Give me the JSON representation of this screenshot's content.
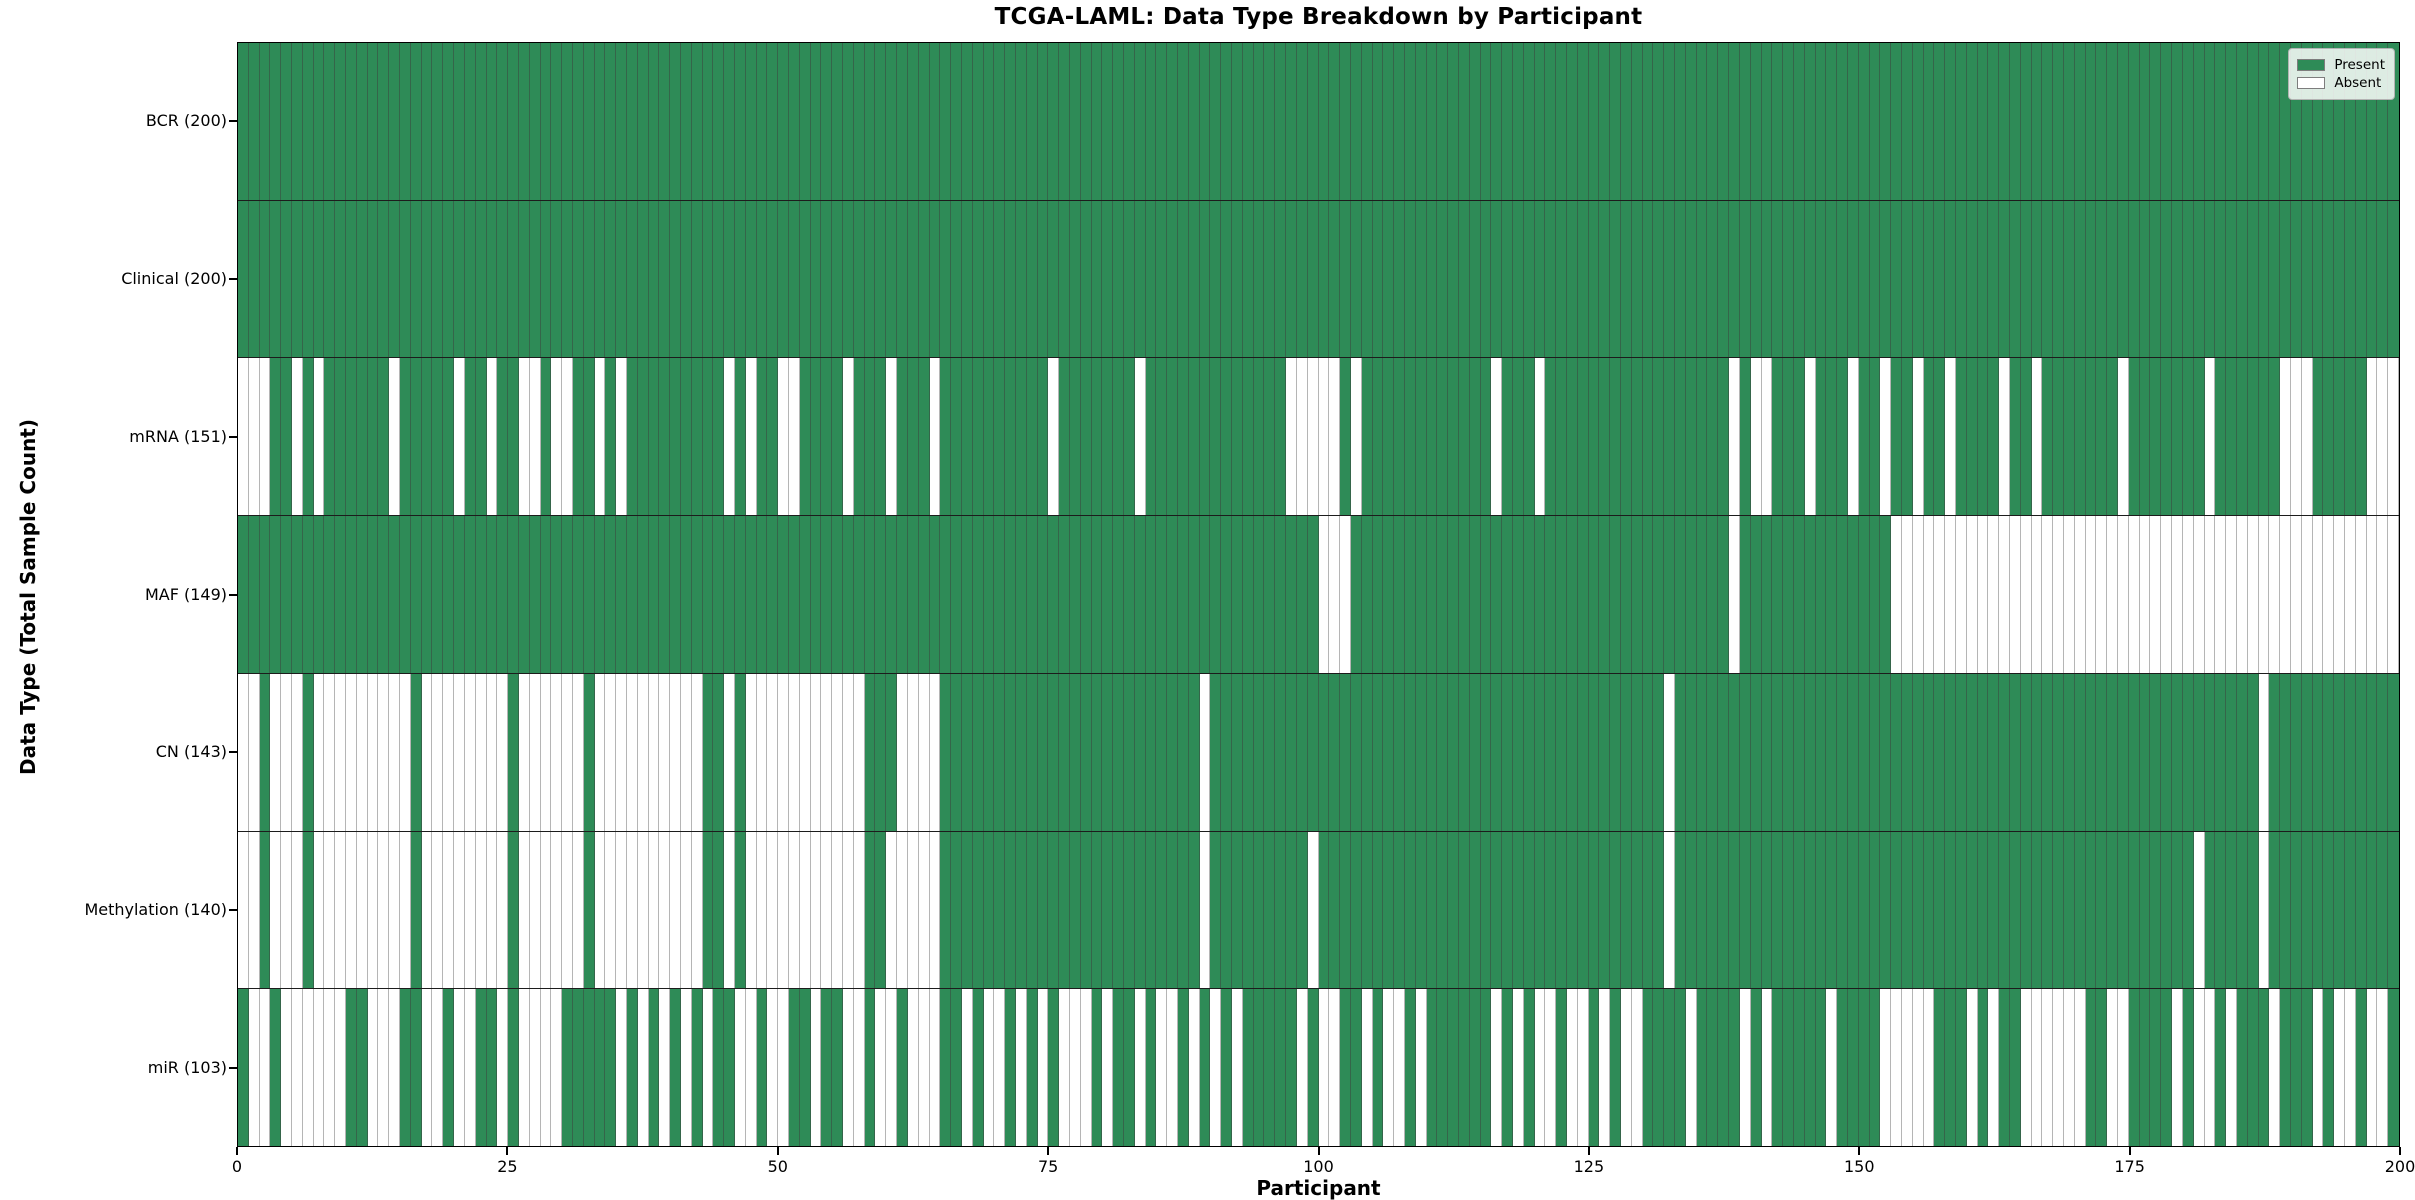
{
  "title": "TCGA-LAML: Data Type Breakdown by Participant",
  "axes": {
    "xlabel": "Participant",
    "ylabel": "Data Type (Total Sample Count)"
  },
  "legend": {
    "items": [
      {
        "label": "Present",
        "color": "#2e8b57"
      },
      {
        "label": "Absent",
        "color": "#ffffff"
      }
    ]
  },
  "colors": {
    "present": "#2e8b57",
    "absent": "#ffffff",
    "grid_line": "rgba(60,60,60,0.48)",
    "row_separator": "#1c1c1c",
    "plot_border": "#000000"
  },
  "chart_data": {
    "type": "heatmap",
    "title": "TCGA-LAML: Data Type Breakdown by Participant",
    "xlabel": "Participant",
    "ylabel": "Data Type (Total Sample Count)",
    "x_range": [
      0,
      200
    ],
    "x_ticks": [
      0,
      25,
      50,
      75,
      100,
      125,
      150,
      175,
      200
    ],
    "n_participants": 200,
    "legend_position": "upper right",
    "categories": [
      "BCR (200)",
      "Clinical (200)",
      "mRNA (151)",
      "MAF (149)",
      "CN (143)",
      "Methylation (140)",
      "miR (103)"
    ],
    "rows": [
      {
        "label": "BCR (200)",
        "datatype": "BCR",
        "total": 200,
        "presence": "1111111111 1111111111 1111111111 1111111111 1111111111 1111111111 1111111111 1111111111 1111111111 1111111111 1111111111 1111111111 1111111111 1111111111 1111111111 1111111111 1111111111 1111111111 1111111111 1111111111"
      },
      {
        "label": "Clinical (200)",
        "datatype": "Clinical",
        "total": 200,
        "presence": "1111111111 1111111111 1111111111 1111111111 1111111111 1111111111 1111111111 1111111111 1111111111 1111111111 1111111111 1111111111 1111111111 1111111111 1111111111 1111111111 1111111111 1111111111 1111111111 1111111111"
      },
      {
        "label": "mRNA (151)",
        "datatype": "mRNA",
        "total": 151,
        "presence": "0001101011 1111011111 0110110010 0110101111 1111101011 0011110111 0111011111 1111101111 1110111111 1111111000 0010111111 1111110111 0111111111 1111111101 0011101110 1101101101 1110110111 1111011111 1101111110 0011111000"
      },
      {
        "label": "MAF (149)",
        "datatype": "MAF",
        "total": 149,
        "presence": "1111111111 1111111111 1111111111 1111111111 1111111111 1111111111 1111111111 1111111111 1111111111 1111111111 0001111111 1111111111 1111111111 1111111101 1111111111 1110000000 0000000000 0000000000 0000000000 0000000000"
      },
      {
        "label": "CN (143)",
        "datatype": "CN",
        "total": 143,
        "presence": "0010001000 0000001000 0000010000 0010000000 0001101000 0000000011 1000011111 1111111111 1111111110 1111111111 1111111111 1111111111 1111111111 1101111111 1111111111 1111111111 1111111111 1111111111 1111111011 1111111111"
      },
      {
        "label": "Methylation (140)",
        "datatype": "Methylation",
        "total": 140,
        "presence": "0010001000 0000001000 0000010000 0010000000 0001101000 0000000011 0000011111 1111111111 1111111110 1111111110 1111111111 1111111111 1111111111 1101111111 1111111111 1111111111 1111111111 1111111111 1011111011 1111111111"
      },
      {
        "label": "miR (103)",
        "datatype": "miR",
        "total": 103,
        "presence": "1001000000 1100011001 0011010000 1111101010 1010110010 0110110010 0100011010 0101010001 0110100101 0101111101 0011010010 1111110101 0010010100 1111011110 1011111011 1100000111 0101100000 0110011110 1001011101 1101001001"
      }
    ]
  }
}
